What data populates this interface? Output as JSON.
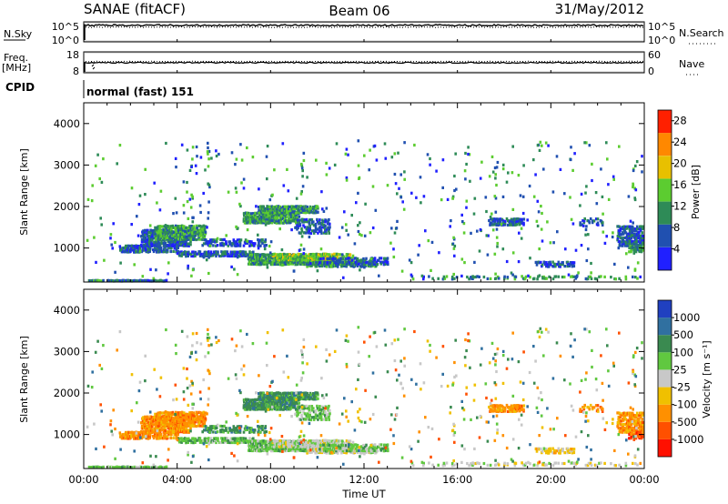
{
  "header": {
    "station": "SANAE (fitACF)",
    "beam": "Beam 06",
    "date": "31/May/2012"
  },
  "top_panels": {
    "nsky_label": "N.Sky",
    "nsky_ticks": [
      "10^5",
      "10^0"
    ],
    "nsearch_label": "N.Search",
    "nsearch_ticks": [
      "10^5",
      "10^0"
    ],
    "freq_label_1": "Freq.",
    "freq_label_2": "[MHz]",
    "freq_ticks": [
      "18",
      "8"
    ],
    "nave_label": "Nave",
    "nave_ticks": [
      "60",
      "0"
    ],
    "cpid_label": "CPID",
    "cpid_value": "normal (fast) 151"
  },
  "chart_data": [
    {
      "type": "heatmap",
      "name": "power",
      "ylabel": "Slant Range [km]",
      "xlabel": "Time UT",
      "x_ticks": [
        "00:00",
        "04:00",
        "08:00",
        "12:00",
        "16:00",
        "20:00",
        "00:00"
      ],
      "y_ticks": [
        "1000",
        "2000",
        "3000",
        "4000"
      ],
      "ylim": [
        180,
        4500
      ],
      "xlim_hours": [
        0,
        24
      ],
      "colorbar_label": "Power [dB]",
      "colorbar_ticks": [
        "4",
        "8",
        "12",
        "16",
        "20",
        "24",
        "28"
      ],
      "colorbar_range": [
        0,
        30
      ],
      "colors": [
        "#2020ff",
        "#2050b0",
        "#2e8b57",
        "#5ccc30",
        "#e8c000",
        "#ff8800",
        "#ff2000"
      ]
    },
    {
      "type": "heatmap",
      "name": "velocity",
      "ylabel": "Slant Range [km]",
      "xlabel": "Time UT",
      "x_ticks": [
        "00:00",
        "04:00",
        "08:00",
        "12:00",
        "16:00",
        "20:00",
        "00:00"
      ],
      "y_ticks": [
        "1000",
        "2000",
        "3000",
        "4000"
      ],
      "ylim": [
        180,
        4500
      ],
      "xlim_hours": [
        0,
        24
      ],
      "colorbar_label": "Velocity [m s⁻¹]",
      "colorbar_ticks": [
        "1000",
        "500",
        "100",
        "25",
        "-25",
        "-100",
        "-500",
        "-1000"
      ],
      "colors": [
        "#2040c0",
        "#3070a0",
        "#3a8a50",
        "#60c840",
        "#c8c8c8",
        "#f0c000",
        "#ff9000",
        "#ff5000",
        "#ff1000"
      ]
    }
  ]
}
